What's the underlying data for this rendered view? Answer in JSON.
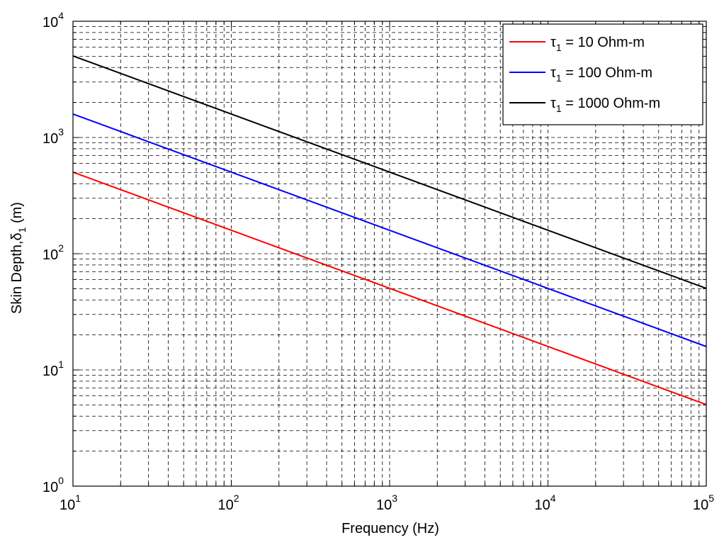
{
  "chart_data": {
    "type": "line",
    "x_scale": "log",
    "y_scale": "log",
    "xlim": [
      10,
      100000
    ],
    "ylim": [
      1,
      10000
    ],
    "grid": true,
    "legend_position": "top-right",
    "xlabel": "Frequency (Hz)",
    "ylabel": {
      "text": "Skin Depth,",
      "symbol": "δ",
      "subscript": "1",
      "unit": " (m)"
    },
    "x_ticks": [
      {
        "value": 10,
        "base": "10",
        "exp": "1"
      },
      {
        "value": 100,
        "base": "10",
        "exp": "2"
      },
      {
        "value": 1000,
        "base": "10",
        "exp": "3"
      },
      {
        "value": 10000,
        "base": "10",
        "exp": "4"
      },
      {
        "value": 100000,
        "base": "10",
        "exp": "5"
      }
    ],
    "y_ticks": [
      {
        "value": 1,
        "base": "10",
        "exp": "0"
      },
      {
        "value": 10,
        "base": "10",
        "exp": "1"
      },
      {
        "value": 100,
        "base": "10",
        "exp": "2"
      },
      {
        "value": 1000,
        "base": "10",
        "exp": "3"
      },
      {
        "value": 10000,
        "base": "10",
        "exp": "4"
      }
    ],
    "series": [
      {
        "symbol": "τ",
        "subscript": "1",
        "text": " = 10 Ohm-m",
        "color": "#ff0000",
        "x": [
          10,
          100000
        ],
        "y": [
          503,
          5.03
        ]
      },
      {
        "symbol": "τ",
        "subscript": "1",
        "text": " = 100 Ohm-m",
        "color": "#0000ff",
        "x": [
          10,
          100000
        ],
        "y": [
          1591,
          15.9
        ]
      },
      {
        "symbol": "τ",
        "subscript": "1",
        "text": " = 1000 Ohm-m",
        "color": "#000000",
        "x": [
          10,
          100000
        ],
        "y": [
          5033,
          50.3
        ]
      }
    ]
  }
}
